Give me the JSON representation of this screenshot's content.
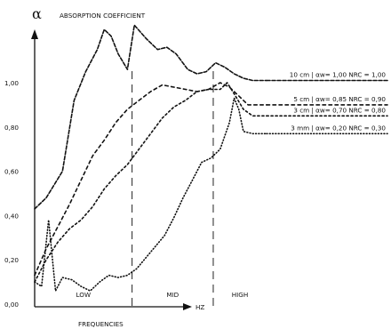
{
  "chart_data": {
    "type": "line",
    "title": "ABSORPTION COEFFICIENT",
    "y_symbol": "α",
    "xlabel": "FREQUENCIES",
    "x_unit": "HZ",
    "ylim": [
      0,
      1.2
    ],
    "y_ticks": [
      "0,00",
      "0,20",
      "0,40",
      "0,60",
      "0,80",
      "1,00"
    ],
    "y_tick_values": [
      0,
      0.2,
      0.4,
      0.6,
      0.8,
      1.0
    ],
    "xlim": [
      0,
      100
    ],
    "bands": [
      {
        "label": "LOW",
        "x_start": 0,
        "x_end": 42
      },
      {
        "label": "MID",
        "x_start": 42,
        "x_end": 77
      },
      {
        "label": "HIGH",
        "x_start": 77,
        "x_end": 100
      }
    ],
    "band_dividers": [
      42,
      77
    ],
    "grid": false,
    "legend_placement": "right",
    "series": [
      {
        "name": "10 cm | αw= 1,00  NRC = 1,00",
        "line_style": "dense-dash",
        "x": [
          0,
          5,
          12,
          17,
          22,
          27,
          30,
          33,
          36,
          40,
          43,
          48,
          53,
          57,
          61,
          66,
          70,
          74,
          78,
          82,
          86,
          90,
          94,
          98,
          100
        ],
        "y": [
          0.43,
          0.48,
          0.6,
          0.92,
          1.05,
          1.15,
          1.24,
          1.21,
          1.13,
          1.06,
          1.26,
          1.2,
          1.15,
          1.16,
          1.13,
          1.06,
          1.04,
          1.05,
          1.09,
          1.07,
          1.04,
          1.02,
          1.01,
          1.01,
          1.01
        ]
      },
      {
        "name": "5 cm | αw= 0,85  NRC = 0,90",
        "line_style": "dash",
        "x": [
          0,
          5,
          10,
          15,
          20,
          25,
          30,
          35,
          40,
          45,
          50,
          55,
          60,
          65,
          70,
          75,
          80,
          84,
          88,
          92,
          96,
          100
        ],
        "y": [
          0.13,
          0.25,
          0.35,
          0.45,
          0.56,
          0.67,
          0.74,
          0.82,
          0.88,
          0.92,
          0.96,
          0.99,
          0.98,
          0.97,
          0.96,
          0.97,
          1.0,
          0.98,
          0.94,
          0.9,
          0.9,
          0.9
        ]
      },
      {
        "name": "3 cm | αw= 0,70  NRC = 0,80",
        "line_style": "short-dash",
        "x": [
          0,
          5,
          10,
          15,
          20,
          25,
          30,
          35,
          40,
          45,
          50,
          55,
          60,
          65,
          70,
          75,
          80,
          83,
          86,
          90,
          94,
          98,
          100
        ],
        "y": [
          0.1,
          0.2,
          0.28,
          0.34,
          0.38,
          0.44,
          0.52,
          0.58,
          0.63,
          0.7,
          0.77,
          0.84,
          0.89,
          0.92,
          0.96,
          0.97,
          0.97,
          1.0,
          0.95,
          0.88,
          0.85,
          0.85,
          0.85
        ]
      },
      {
        "name": "3 mm | αw= 0,20  NRC = 0,30",
        "line_style": "dot",
        "x": [
          0,
          3,
          6,
          9,
          12,
          16,
          20,
          24,
          28,
          32,
          36,
          40,
          44,
          48,
          52,
          56,
          60,
          64,
          68,
          72,
          76,
          80,
          84,
          86,
          88,
          90,
          94,
          100
        ],
        "y": [
          0.1,
          0.08,
          0.38,
          0.06,
          0.12,
          0.11,
          0.08,
          0.06,
          0.1,
          0.13,
          0.12,
          0.13,
          0.16,
          0.21,
          0.26,
          0.31,
          0.39,
          0.48,
          0.56,
          0.64,
          0.66,
          0.7,
          0.82,
          0.93,
          0.88,
          0.78,
          0.77,
          0.77
        ]
      }
    ]
  }
}
